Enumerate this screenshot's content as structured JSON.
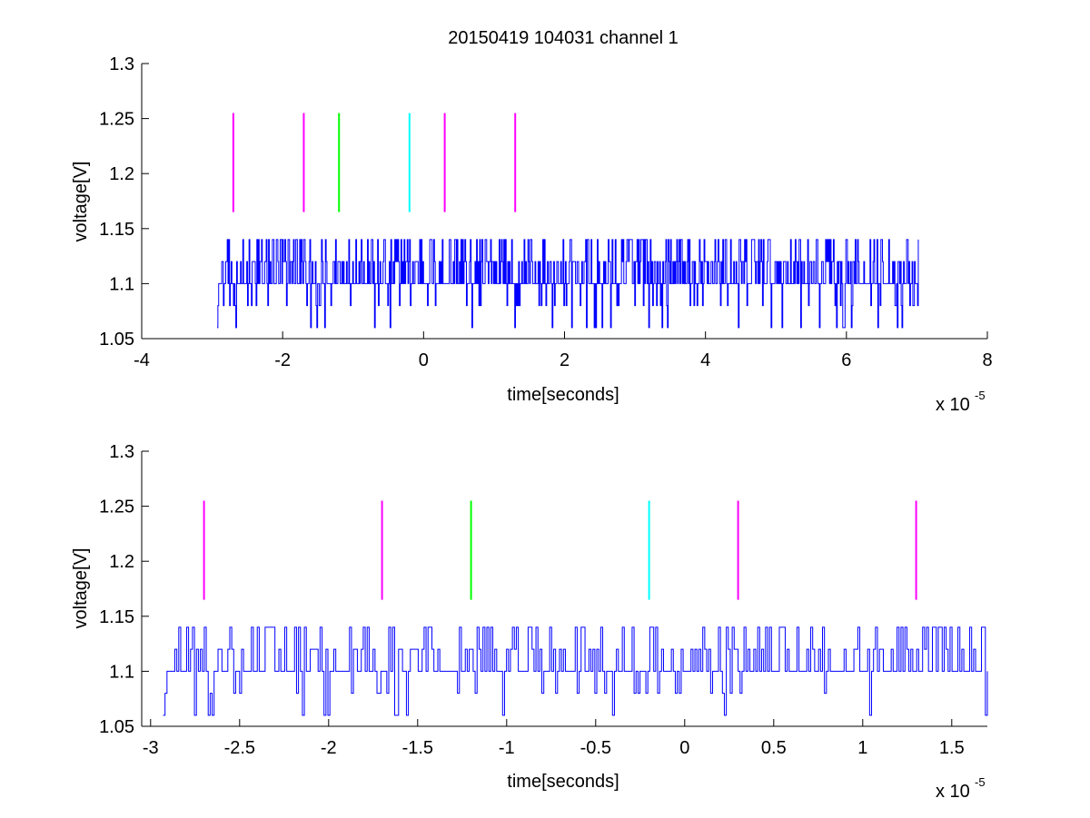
{
  "chart_data": [
    {
      "type": "line",
      "title": "20150419 104031 channel 1",
      "xlabel": "time[seconds]",
      "ylabel": "voltage[V]",
      "x_exponent_label": "x 10",
      "x_exponent_power": "-5",
      "xlim": [
        -4,
        8
      ],
      "ylim": [
        1.05,
        1.3
      ],
      "x_ticks": [
        -4,
        -2,
        0,
        2,
        4,
        6,
        8
      ],
      "x_tick_labels": [
        "-4",
        "-2",
        "0",
        "2",
        "4",
        "6",
        "8"
      ],
      "y_ticks": [
        1.05,
        1.1,
        1.15,
        1.2,
        1.25,
        1.3
      ],
      "y_tick_labels": [
        "1.05",
        "1.1",
        "1.15",
        "1.2",
        "1.25",
        "1.3"
      ],
      "grid": false,
      "signal": {
        "color": "#0000ff",
        "x_range": [
          -2.93,
          7.02
        ],
        "levels": [
          1.06,
          1.08,
          1.1,
          1.12,
          1.14
        ]
      },
      "markers": [
        {
          "x": -2.7,
          "y_range": [
            1.165,
            1.255
          ],
          "color": "#ff00ff"
        },
        {
          "x": -1.7,
          "y_range": [
            1.165,
            1.255
          ],
          "color": "#ff00ff"
        },
        {
          "x": -1.2,
          "y_range": [
            1.165,
            1.255
          ],
          "color": "#00ff00"
        },
        {
          "x": -0.2,
          "y_range": [
            1.165,
            1.255
          ],
          "color": "#00ffff"
        },
        {
          "x": 0.3,
          "y_range": [
            1.165,
            1.255
          ],
          "color": "#ff00ff"
        },
        {
          "x": 1.3,
          "y_range": [
            1.165,
            1.255
          ],
          "color": "#ff00ff"
        }
      ]
    },
    {
      "type": "line",
      "title": "",
      "xlabel": "time[seconds]",
      "ylabel": "voltage[V]",
      "x_exponent_label": "x 10",
      "x_exponent_power": "-5",
      "xlim": [
        -3.05,
        1.7
      ],
      "ylim": [
        1.05,
        1.3
      ],
      "x_ticks": [
        -3,
        -2.5,
        -2,
        -1.5,
        -1,
        -0.5,
        0,
        0.5,
        1,
        1.5
      ],
      "x_tick_labels": [
        "-3",
        "-2.5",
        "-2",
        "-1.5",
        "-1",
        "-0.5",
        "0",
        "0.5",
        "1",
        "1.5"
      ],
      "y_ticks": [
        1.05,
        1.1,
        1.15,
        1.2,
        1.25,
        1.3
      ],
      "y_tick_labels": [
        "1.05",
        "1.1",
        "1.15",
        "1.2",
        "1.25",
        "1.3"
      ],
      "grid": false,
      "signal": {
        "color": "#0000ff",
        "x_range": [
          -2.93,
          1.7
        ],
        "levels": [
          1.06,
          1.08,
          1.1,
          1.12,
          1.14
        ]
      },
      "markers": [
        {
          "x": -2.7,
          "y_range": [
            1.165,
            1.255
          ],
          "color": "#ff00ff"
        },
        {
          "x": -1.7,
          "y_range": [
            1.165,
            1.255
          ],
          "color": "#ff00ff"
        },
        {
          "x": -1.2,
          "y_range": [
            1.165,
            1.255
          ],
          "color": "#00ff00"
        },
        {
          "x": -0.2,
          "y_range": [
            1.165,
            1.255
          ],
          "color": "#00ffff"
        },
        {
          "x": 0.3,
          "y_range": [
            1.165,
            1.255
          ],
          "color": "#ff00ff"
        },
        {
          "x": 1.3,
          "y_range": [
            1.165,
            1.255
          ],
          "color": "#ff00ff"
        }
      ]
    }
  ]
}
